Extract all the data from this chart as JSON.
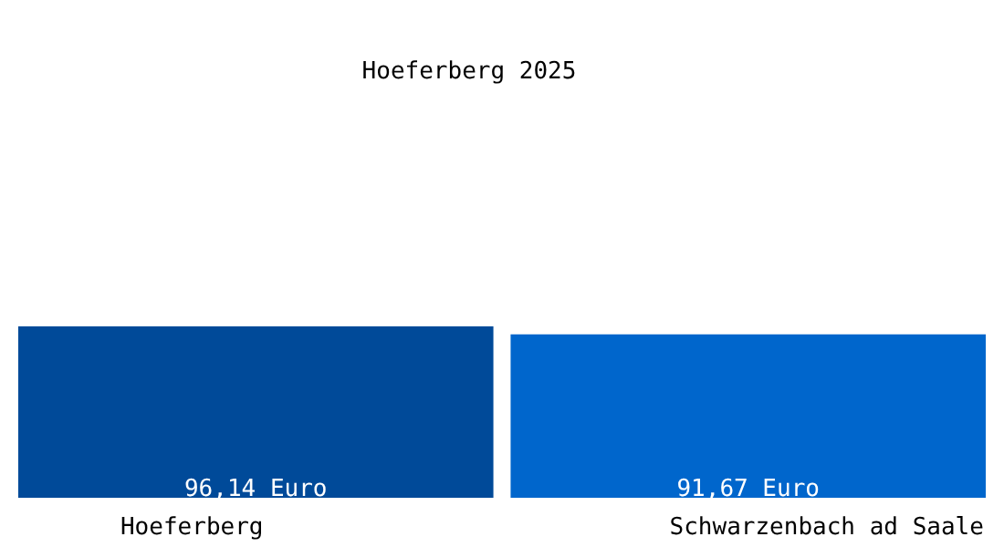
{
  "chart_data": {
    "type": "bar",
    "title": "Hoeferberg 2025",
    "categories": [
      "Hoeferberg",
      "Schwarzenbach ad Saale"
    ],
    "values": [
      96.14,
      91.67
    ],
    "colors": [
      "#004a99",
      "#0066cc"
    ],
    "value_labels": [
      "96,14 Euro",
      "91,67 Euro"
    ]
  }
}
